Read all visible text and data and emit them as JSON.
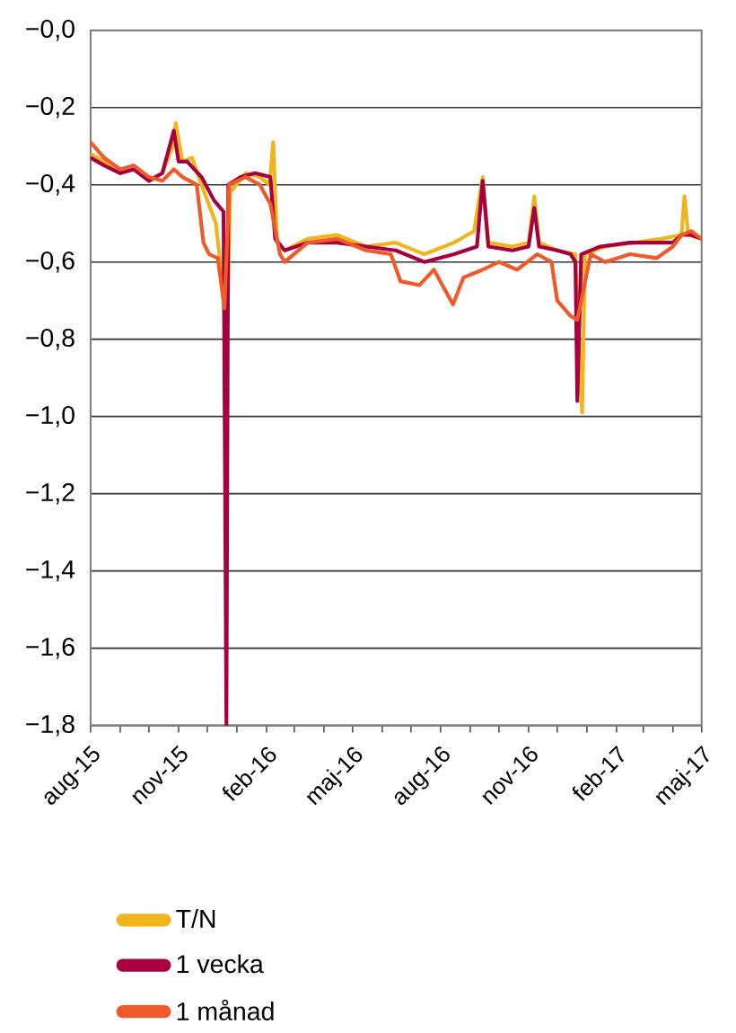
{
  "chart_data": {
    "type": "line",
    "legend": "bottom",
    "grid": "y",
    "line_style": "solid",
    "marker": "none",
    "xlim": [
      "2015-08-01",
      "2017-05-01"
    ],
    "ylim": [
      -1.8,
      0
    ],
    "yticks": [
      {
        "value": 0,
        "label": "−0,0"
      },
      {
        "value": -0.2,
        "label": "−0,2"
      },
      {
        "value": -0.4,
        "label": "−0,4"
      },
      {
        "value": -0.6,
        "label": "−0,6"
      },
      {
        "value": -0.8,
        "label": "−0,8"
      },
      {
        "value": -1.0,
        "label": "−1,0"
      },
      {
        "value": -1.2,
        "label": "−1,2"
      },
      {
        "value": -1.4,
        "label": "−1,4"
      },
      {
        "value": -1.6,
        "label": "−1,6"
      },
      {
        "value": -1.8,
        "label": "−1,8"
      }
    ],
    "xticks": [
      {
        "value": "2015-08-01",
        "label": "aug-15"
      },
      {
        "value": "2015-09-01",
        "label": null
      },
      {
        "value": "2015-10-01",
        "label": null
      },
      {
        "value": "2015-11-01",
        "label": "nov-15"
      },
      {
        "value": "2015-12-01",
        "label": null
      },
      {
        "value": "2016-01-01",
        "label": null
      },
      {
        "value": "2016-02-01",
        "label": "feb-16"
      },
      {
        "value": "2016-03-01",
        "label": null
      },
      {
        "value": "2016-04-01",
        "label": null
      },
      {
        "value": "2016-05-01",
        "label": "maj-16"
      },
      {
        "value": "2016-06-01",
        "label": null
      },
      {
        "value": "2016-07-01",
        "label": null
      },
      {
        "value": "2016-08-01",
        "label": "aug-16"
      },
      {
        "value": "2016-09-01",
        "label": null
      },
      {
        "value": "2016-10-01",
        "label": null
      },
      {
        "value": "2016-11-01",
        "label": "nov-16"
      },
      {
        "value": "2016-12-01",
        "label": null
      },
      {
        "value": "2017-01-01",
        "label": null
      },
      {
        "value": "2017-02-01",
        "label": "feb-17"
      },
      {
        "value": "2017-03-01",
        "label": null
      },
      {
        "value": "2017-04-01",
        "label": null
      },
      {
        "value": "2017-05-01",
        "label": "maj-17"
      }
    ],
    "series": [
      {
        "name": "T/N",
        "color": "#f0b41c",
        "x": [
          "2015-08-01",
          "2015-08-15",
          "2015-09-01",
          "2015-09-15",
          "2015-10-01",
          "2015-10-15",
          "2015-10-26",
          "2015-10-29",
          "2015-11-05",
          "2015-11-15",
          "2015-11-28",
          "2015-12-10",
          "2015-12-18",
          "2015-12-21",
          "2015-12-25",
          "2016-01-10",
          "2016-01-25",
          "2016-02-04",
          "2016-02-08",
          "2016-02-12",
          "2016-02-20",
          "2016-03-15",
          "2016-04-15",
          "2016-05-15",
          "2016-06-15",
          "2016-07-15",
          "2016-08-15",
          "2016-09-05",
          "2016-09-14",
          "2016-09-20",
          "2016-10-15",
          "2016-11-01",
          "2016-11-07",
          "2016-11-12",
          "2016-12-01",
          "2016-12-20",
          "2016-12-27",
          "2016-12-30",
          "2017-01-20",
          "2017-02-20",
          "2017-03-20",
          "2017-04-10",
          "2017-04-13",
          "2017-04-17",
          "2017-05-01"
        ],
        "values": [
          -0.32,
          -0.34,
          -0.37,
          -0.36,
          -0.39,
          -0.37,
          -0.3,
          -0.24,
          -0.34,
          -0.33,
          -0.42,
          -0.5,
          -0.68,
          -0.85,
          -0.42,
          -0.37,
          -0.38,
          -0.4,
          -0.29,
          -0.55,
          -0.57,
          -0.54,
          -0.53,
          -0.56,
          -0.55,
          -0.58,
          -0.55,
          -0.52,
          -0.38,
          -0.55,
          -0.56,
          -0.55,
          -0.43,
          -0.55,
          -0.57,
          -0.58,
          -0.99,
          -0.58,
          -0.56,
          -0.55,
          -0.54,
          -0.53,
          -0.43,
          -0.53,
          -0.54
        ]
      },
      {
        "name": "1 vecka",
        "color": "#a50040",
        "x": [
          "2015-08-01",
          "2015-08-15",
          "2015-09-01",
          "2015-09-15",
          "2015-10-01",
          "2015-10-15",
          "2015-10-27",
          "2015-11-01",
          "2015-11-10",
          "2015-11-25",
          "2015-12-08",
          "2015-12-18",
          "2015-12-21",
          "2015-12-23",
          "2016-01-05",
          "2016-01-20",
          "2016-02-05",
          "2016-02-10",
          "2016-02-20",
          "2016-03-15",
          "2016-04-15",
          "2016-05-15",
          "2016-06-15",
          "2016-07-15",
          "2016-08-15",
          "2016-09-08",
          "2016-09-14",
          "2016-09-20",
          "2016-10-15",
          "2016-11-01",
          "2016-11-07",
          "2016-11-12",
          "2016-12-01",
          "2016-12-15",
          "2016-12-20",
          "2016-12-22",
          "2016-12-26",
          "2017-01-15",
          "2017-02-15",
          "2017-03-15",
          "2017-04-01",
          "2017-04-10",
          "2017-04-20",
          "2017-05-01"
        ],
        "values": [
          -0.33,
          -0.35,
          -0.37,
          -0.36,
          -0.39,
          -0.37,
          -0.26,
          -0.34,
          -0.34,
          -0.38,
          -0.44,
          -0.47,
          -1.8,
          -0.4,
          -0.38,
          -0.37,
          -0.38,
          -0.54,
          -0.57,
          -0.55,
          -0.55,
          -0.56,
          -0.57,
          -0.6,
          -0.58,
          -0.56,
          -0.39,
          -0.56,
          -0.57,
          -0.56,
          -0.46,
          -0.56,
          -0.57,
          -0.58,
          -0.6,
          -0.96,
          -0.58,
          -0.56,
          -0.55,
          -0.55,
          -0.55,
          -0.53,
          -0.53,
          -0.54
        ]
      },
      {
        "name": "1 månad",
        "color": "#f05a28",
        "x": [
          "2015-08-01",
          "2015-08-15",
          "2015-09-01",
          "2015-09-15",
          "2015-10-01",
          "2015-10-15",
          "2015-10-27",
          "2015-11-05",
          "2015-11-20",
          "2015-11-27",
          "2015-12-03",
          "2015-12-12",
          "2015-12-19",
          "2015-12-24",
          "2016-01-10",
          "2016-01-25",
          "2016-02-05",
          "2016-02-15",
          "2016-02-20",
          "2016-03-15",
          "2016-04-15",
          "2016-05-15",
          "2016-06-10",
          "2016-06-20",
          "2016-07-10",
          "2016-07-25",
          "2016-08-14",
          "2016-08-25",
          "2016-09-14",
          "2016-10-01",
          "2016-10-20",
          "2016-11-10",
          "2016-11-25",
          "2016-12-01",
          "2016-12-15",
          "2016-12-22",
          "2017-01-05",
          "2017-01-20",
          "2017-02-15",
          "2017-03-15",
          "2017-04-01",
          "2017-04-10",
          "2017-04-20",
          "2017-05-01"
        ],
        "values": [
          -0.29,
          -0.33,
          -0.36,
          -0.35,
          -0.38,
          -0.39,
          -0.36,
          -0.38,
          -0.4,
          -0.55,
          -0.58,
          -0.59,
          -0.72,
          -0.4,
          -0.38,
          -0.4,
          -0.45,
          -0.58,
          -0.6,
          -0.55,
          -0.54,
          -0.57,
          -0.58,
          -0.65,
          -0.66,
          -0.62,
          -0.71,
          -0.64,
          -0.62,
          -0.6,
          -0.62,
          -0.58,
          -0.6,
          -0.7,
          -0.74,
          -0.75,
          -0.58,
          -0.6,
          -0.58,
          -0.59,
          -0.56,
          -0.53,
          -0.52,
          -0.54
        ]
      }
    ]
  }
}
